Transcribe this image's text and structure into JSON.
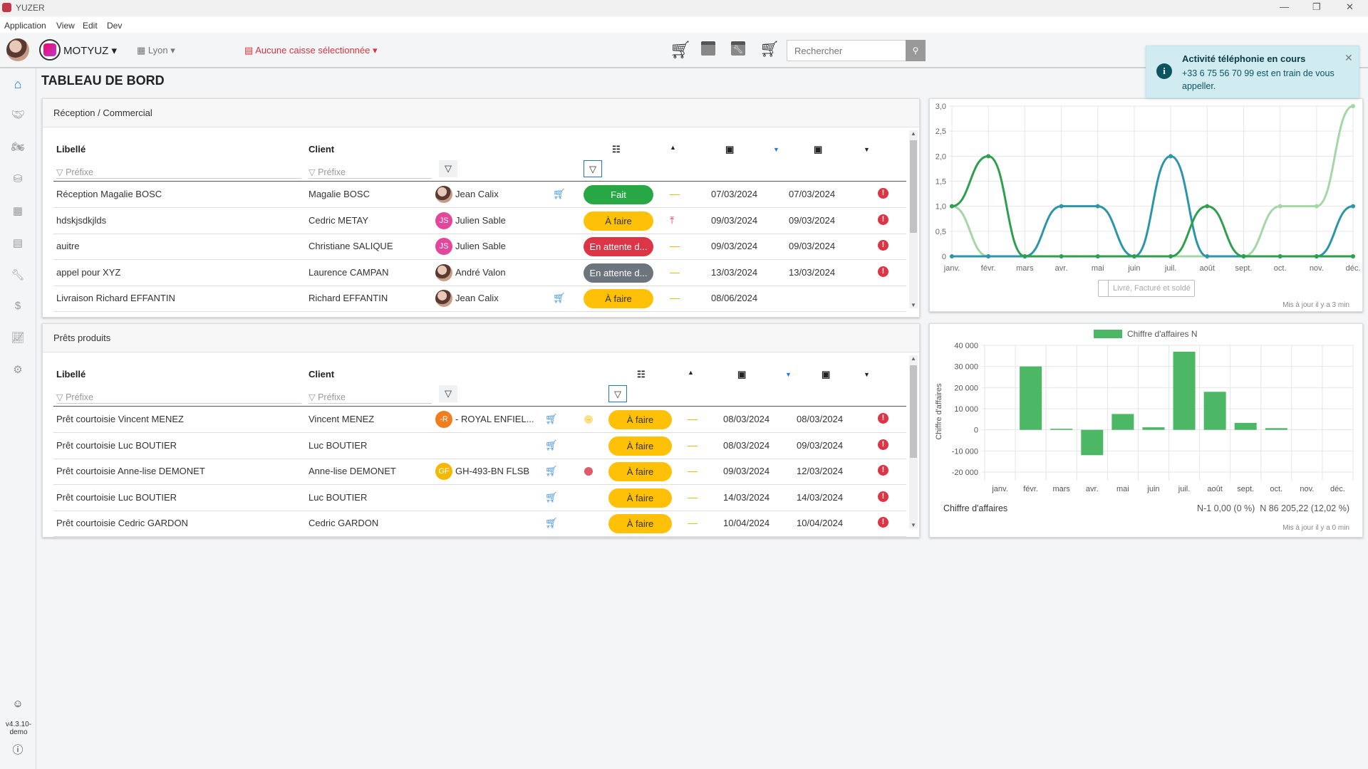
{
  "window": {
    "title": "YUZER"
  },
  "menu": [
    "Application",
    "View",
    "Edit",
    "Dev"
  ],
  "toolbar": {
    "company": "MOTYUZ",
    "site": "Lyon",
    "cash_register": "Aucune caisse sélectionnée",
    "search_placeholder": "Rechercher",
    "icons": [
      "cart-icon",
      "calendar-moto-icon",
      "calendar-wrench-icon",
      "cart-moto-icon",
      "search-icon"
    ]
  },
  "sidebar": {
    "items": [
      "home",
      "handshake",
      "motorcycle",
      "parts",
      "warehouse",
      "calendar",
      "wrench",
      "dollar",
      "chart",
      "settings"
    ],
    "version": "v4.3.10-\ndemo"
  },
  "page": {
    "title": "TABLEAU DE BORD"
  },
  "reception": {
    "title": "Réception / Commercial",
    "headers": {
      "label": "Libellé",
      "client": "Client"
    },
    "filter_placeholder": "Préfixe",
    "rows": [
      {
        "label": "Réception Magalie BOSC",
        "client": "Magalie BOSC",
        "assignee": "Jean Calix",
        "avatar": "photo",
        "cart": true,
        "status": "Fait",
        "status_color": "#28a745",
        "priority": "normal",
        "date1": "07/03/2024",
        "date2": "07/03/2024",
        "alert": true
      },
      {
        "label": "hdskjsdkjlds",
        "client": "Cedric METAY",
        "assignee": "Julien Sable",
        "avatar": "JS",
        "cart": false,
        "status": "À faire",
        "status_color": "#ffc107",
        "priority": "high",
        "date1": "09/03/2024",
        "date2": "09/03/2024",
        "alert": true
      },
      {
        "label": "auitre",
        "client": "Christiane SALIQUE",
        "assignee": "Julien Sable",
        "avatar": "JS",
        "cart": false,
        "status": "En attente d...",
        "status_color": "#dc3545",
        "priority": "normal",
        "date1": "09/03/2024",
        "date2": "09/03/2024",
        "alert": true
      },
      {
        "label": "appel pour XYZ",
        "client": "Laurence CAMPAN",
        "assignee": "André Valon",
        "avatar": "photo",
        "cart": false,
        "status": "En attente d...",
        "status_color": "#6c757d",
        "priority": "normal",
        "date1": "13/03/2024",
        "date2": "13/03/2024",
        "alert": true
      },
      {
        "label": "Livraison Richard EFFANTIN",
        "client": "Richard EFFANTIN",
        "assignee": "Jean Calix",
        "avatar": "photo",
        "cart": true,
        "status": "À faire",
        "status_color": "#ffc107",
        "priority": "normal",
        "date1": "08/06/2024",
        "date2": "",
        "alert": false
      }
    ]
  },
  "loans": {
    "title": "Prêts produits",
    "headers": {
      "label": "Libellé",
      "client": "Client"
    },
    "filter_placeholder": "Préfixe",
    "rows": [
      {
        "label": "Prêt courtoisie Vincent MENEZ",
        "client": "Vincent MENEZ",
        "vehicle": "- ROYAL ENFIEL...",
        "avatar": "-R",
        "avatar_color": "#f07d1e",
        "extra": "arrow",
        "status": "À faire",
        "date1": "08/03/2024",
        "date2": "08/03/2024"
      },
      {
        "label": "Prêt courtoisie Luc BOUTIER",
        "client": "Luc BOUTIER",
        "vehicle": "",
        "avatar": "",
        "extra": "",
        "status": "À faire",
        "date1": "08/03/2024",
        "date2": "09/03/2024"
      },
      {
        "label": "Prêt courtoisie Anne-lise DEMONET",
        "client": "Anne-lise DEMONET",
        "vehicle": "GH-493-BN FLSB",
        "avatar": "GF",
        "avatar_color": "#f5b800",
        "extra": "dot",
        "status": "À faire",
        "date1": "09/03/2024",
        "date2": "12/03/2024"
      },
      {
        "label": "Prêt courtoisie Luc BOUTIER",
        "client": "Luc BOUTIER",
        "vehicle": "",
        "avatar": "",
        "extra": "",
        "status": "À faire",
        "date1": "14/03/2024",
        "date2": "14/03/2024"
      },
      {
        "label": "Prêt courtoisie Cedric GARDON",
        "client": "Cedric GARDON",
        "vehicle": "",
        "avatar": "",
        "extra": "",
        "status": "À faire",
        "date1": "10/04/2024",
        "date2": "10/04/2024"
      }
    ]
  },
  "toast": {
    "title": "Activité téléphonie en cours",
    "message": "+33 6 75 56 70 99 est en train de vous appeller."
  },
  "chart_data": [
    {
      "type": "line",
      "categories": [
        "janv.",
        "févr.",
        "mars",
        "avr.",
        "mai",
        "juin",
        "juil.",
        "août",
        "sept.",
        "oct.",
        "nov.",
        "déc."
      ],
      "ylim": [
        0,
        3
      ],
      "yticks": [
        "0",
        "0,5",
        "1,0",
        "1,5",
        "2,0",
        "2,5",
        "3,0"
      ],
      "grid": true,
      "series": [
        {
          "values": [
            1,
            0,
            0,
            0,
            0,
            0,
            0,
            0,
            0,
            1,
            1,
            3
          ],
          "color": "#a5d6a7"
        },
        {
          "values": [
            0,
            0,
            0,
            1,
            1,
            0,
            2,
            0,
            0,
            0,
            0,
            1
          ],
          "color": "#2a96a8"
        },
        {
          "values": [
            1,
            2,
            0,
            0,
            0,
            0,
            0,
            1,
            0,
            0,
            0,
            0
          ],
          "color": "#2e9e4f"
        }
      ],
      "legend": "Livré, Facturé et soldé",
      "updated": "Mis à jour il y a 3 min"
    },
    {
      "type": "bar",
      "categories": [
        "janv.",
        "févr.",
        "mars",
        "avr.",
        "mai",
        "juin",
        "juil.",
        "août",
        "sept.",
        "oct.",
        "nov.",
        "déc."
      ],
      "ylim": [
        -20000,
        40000
      ],
      "yticks": [
        "-20 000",
        "-10 000",
        "0",
        "10 000",
        "20 000",
        "30 000",
        "40 000"
      ],
      "ylabel": "Chiffre d'affaires",
      "grid": true,
      "series": [
        {
          "name": "Chiffre d'affaires N",
          "values": [
            0,
            30000,
            500,
            -12000,
            7500,
            1200,
            37000,
            18000,
            3300,
            800,
            0,
            0
          ],
          "color": "#4cb866"
        }
      ],
      "legend": "top",
      "footer_label": "Chiffre d'affaires",
      "footer_value": "N-1 0,00 (0 %)  N 86 205,22 (12,02 %)",
      "updated": "Mis à jour il y a 0 min"
    }
  ]
}
